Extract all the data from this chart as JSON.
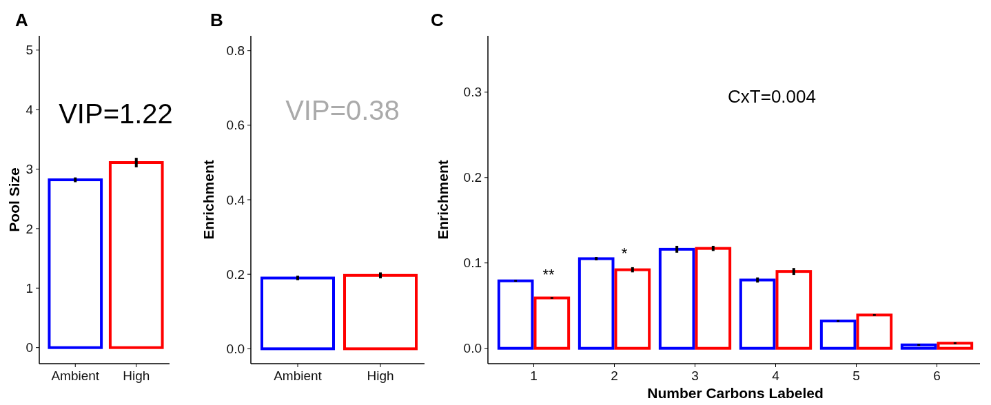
{
  "chart_data": [
    {
      "type": "bar",
      "title": "A",
      "ylabel": "Pool Size",
      "categories": [
        "Ambient",
        "High"
      ],
      "values": [
        2.82,
        3.11
      ],
      "colors": [
        "#0000ff",
        "#ff0000"
      ],
      "errors": [
        0.04,
        0.08
      ],
      "ylim": [
        -0.27,
        5.24
      ],
      "yticks": [
        0,
        1,
        2,
        3,
        4,
        5
      ],
      "annotations": [
        "VIP=1.22"
      ]
    },
    {
      "type": "bar",
      "title": "B",
      "ylabel": "Enrichment",
      "categories": [
        "Ambient",
        "High"
      ],
      "values": [
        0.19,
        0.197
      ],
      "colors": [
        "#0000ff",
        "#ff0000"
      ],
      "errors": [
        0.006,
        0.008
      ],
      "ylim": [
        -0.04,
        0.84
      ],
      "yticks": [
        {
          "value": 0,
          "label": "0.0"
        },
        {
          "value": 0.2,
          "label": "0.2"
        },
        {
          "value": 0.4,
          "label": "0.4"
        },
        {
          "value": 0.6,
          "label": "0.6"
        },
        {
          "value": 0.8,
          "label": "0.8"
        }
      ],
      "annotations": [
        "VIP=0.38"
      ]
    },
    {
      "type": "bar",
      "title": "C",
      "xlabel": "Number Carbons Labeled",
      "ylabel": "Enrichment",
      "categories": [
        "1",
        "2",
        "3",
        "4",
        "5",
        "6"
      ],
      "series": [
        {
          "color": "#0000ff",
          "values": [
            0.079,
            0.105,
            0.116,
            0.08,
            0.032,
            0.004
          ],
          "errors": [
            0.001,
            0.002,
            0.004,
            0.003,
            0.001,
            0.001
          ]
        },
        {
          "color": "#ff0000",
          "values": [
            0.059,
            0.092,
            0.117,
            0.09,
            0.039,
            0.006
          ],
          "errors": [
            0.001,
            0.003,
            0.003,
            0.004,
            0.001,
            0.001
          ]
        }
      ],
      "ylim": [
        -0.018,
        0.366
      ],
      "yticks": [
        {
          "value": 0,
          "label": "0.0"
        },
        {
          "value": 0.1,
          "label": "0.1"
        },
        {
          "value": 0.2,
          "label": "0.2"
        },
        {
          "value": 0.3,
          "label": "0.3"
        }
      ],
      "annotations": [
        "CxT=0.004",
        "**",
        "*"
      ]
    }
  ]
}
